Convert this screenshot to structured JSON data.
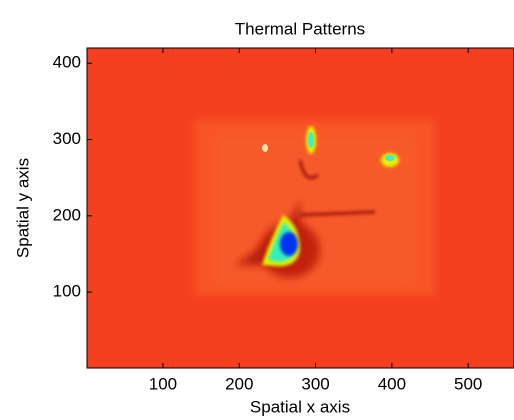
{
  "chart_data": {
    "type": "image",
    "title": "Thermal Patterns",
    "x_label": "Spatial x axis",
    "y_label": "Spatial y axis",
    "xlim": [
      0.5,
      560
    ],
    "xticks": [
      100,
      200,
      300,
      400,
      500
    ],
    "ylim": [
      0.5,
      420
    ],
    "yticks": [
      100,
      200,
      300,
      400
    ]
  }
}
